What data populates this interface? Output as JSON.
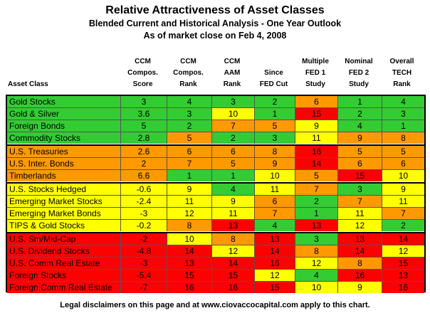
{
  "title": "Relative Attractiveness of Asset Classes",
  "subtitle": "Blended Current and Historical Analysis - One Year Outlook",
  "subtitle2": "As of market close on Feb 4, 2008",
  "footer": "Legal disclaimers on this page and at www.ciovaccocapital.com apply to this chart.",
  "colors": {
    "green": "#33cc33",
    "orange": "#ff9900",
    "yellow": "#ffff00",
    "red": "#ff0000"
  },
  "chart_data": {
    "type": "table",
    "columns": [
      "Asset Class",
      "CCM\nCompos.\nScore",
      "CCM\nCompos.\nRank",
      "CCM\nAAM\nRank",
      "Since\nFED Cut",
      "Multiple\nFED 1\nStudy",
      "Nominal\nFED 2\nStudy",
      "Overall\nTECH\nRank"
    ],
    "groups": [
      {
        "color": "green",
        "rows": [
          {
            "name": "Gold Stocks",
            "values": [
              "3",
              "4",
              "3",
              "2",
              "6",
              "1",
              "4"
            ],
            "colors": [
              "green",
              "green",
              "green",
              "green",
              "orange",
              "green",
              "green"
            ]
          },
          {
            "name": "Gold & Silver",
            "values": [
              "3.6",
              "3",
              "10",
              "1",
              "15",
              "2",
              "3"
            ],
            "colors": [
              "green",
              "green",
              "yellow",
              "green",
              "red",
              "green",
              "green"
            ]
          },
          {
            "name": "Foreign Bonds",
            "values": [
              "5",
              "2",
              "7",
              "5",
              "9",
              "4",
              "1"
            ],
            "colors": [
              "green",
              "green",
              "orange",
              "orange",
              "yellow",
              "green",
              "green"
            ]
          },
          {
            "name": "Commodity Stocks",
            "values": [
              "2.8",
              "5",
              "2",
              "3",
              "11",
              "9",
              "8"
            ],
            "colors": [
              "green",
              "orange",
              "green",
              "green",
              "yellow",
              "orange",
              "orange"
            ]
          }
        ]
      },
      {
        "color": "orange",
        "rows": [
          {
            "name": "U.S. Treasuries",
            "values": [
              "2.6",
              "6",
              "6",
              "8",
              "16",
              "5",
              "5"
            ],
            "colors": [
              "orange",
              "orange",
              "orange",
              "orange",
              "red",
              "orange",
              "orange"
            ]
          },
          {
            "name": "U.S. Inter. Bonds",
            "values": [
              "2",
              "7",
              "5",
              "9",
              "14",
              "6",
              "6"
            ],
            "colors": [
              "orange",
              "orange",
              "orange",
              "orange",
              "red",
              "orange",
              "orange"
            ]
          },
          {
            "name": "Timberlands",
            "values": [
              "6.6",
              "1",
              "1",
              "10",
              "5",
              "15",
              "10"
            ],
            "colors": [
              "orange",
              "green",
              "green",
              "yellow",
              "orange",
              "red",
              "yellow"
            ]
          }
        ]
      },
      {
        "color": "yellow",
        "rows": [
          {
            "name": "U.S. Stocks Hedged",
            "values": [
              "-0.6",
              "9",
              "4",
              "11",
              "7",
              "3",
              "9"
            ],
            "colors": [
              "yellow",
              "yellow",
              "green",
              "yellow",
              "orange",
              "green",
              "yellow"
            ]
          },
          {
            "name": "Emerging Market Stocks",
            "values": [
              "-2.4",
              "11",
              "9",
              "6",
              "2",
              "7",
              "11"
            ],
            "colors": [
              "yellow",
              "yellow",
              "yellow",
              "orange",
              "green",
              "orange",
              "yellow"
            ]
          },
          {
            "name": "Emerging Market Bonds",
            "values": [
              "-3",
              "12",
              "11",
              "7",
              "1",
              "11",
              "7"
            ],
            "colors": [
              "yellow",
              "yellow",
              "yellow",
              "orange",
              "green",
              "yellow",
              "orange"
            ]
          },
          {
            "name": "TIPS & Gold Stocks",
            "values": [
              "-0.2",
              "8",
              "13",
              "4",
              "13",
              "12",
              "2"
            ],
            "colors": [
              "yellow",
              "orange",
              "red",
              "green",
              "red",
              "yellow",
              "green"
            ]
          }
        ]
      },
      {
        "color": "red",
        "rows": [
          {
            "name": "U.S. Sm/Mid-Cap",
            "values": [
              "-2",
              "10",
              "8",
              "13",
              "3",
              "13",
              "14"
            ],
            "colors": [
              "red",
              "yellow",
              "orange",
              "red",
              "green",
              "red",
              "red"
            ]
          },
          {
            "name": "U.S. Dividend Stocks",
            "values": [
              "-4.8",
              "14",
              "12",
              "14",
              "8",
              "14",
              "12"
            ],
            "colors": [
              "red",
              "red",
              "yellow",
              "red",
              "orange",
              "red",
              "yellow"
            ]
          },
          {
            "name": "U.S. Comm Real Estate",
            "values": [
              "-3",
              "13",
              "14",
              "16",
              "12",
              "8",
              "15"
            ],
            "colors": [
              "red",
              "red",
              "red",
              "red",
              "yellow",
              "orange",
              "red"
            ]
          },
          {
            "name": "Foreign Stocks",
            "values": [
              "-5.4",
              "15",
              "15",
              "12",
              "4",
              "16",
              "13"
            ],
            "colors": [
              "red",
              "red",
              "red",
              "yellow",
              "green",
              "red",
              "red"
            ]
          },
          {
            "name": "Foreign Comm Real Estate",
            "values": [
              "-7",
              "16",
              "16",
              "15",
              "10",
              "9",
              "16"
            ],
            "colors": [
              "red",
              "red",
              "red",
              "red",
              "yellow",
              "yellow",
              "red"
            ]
          }
        ]
      }
    ]
  }
}
